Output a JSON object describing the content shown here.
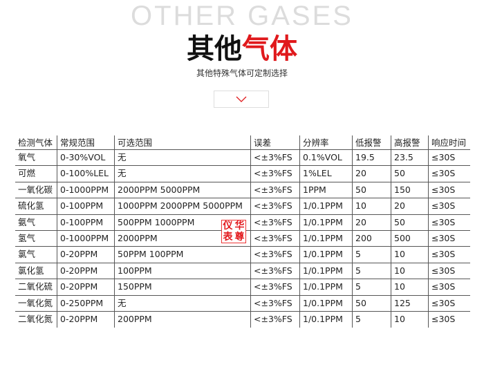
{
  "header": {
    "background_text": "OTHER GASES",
    "title_black": "其他",
    "title_red": "气体",
    "subtitle": "其他特殊气体可定制选择",
    "accent_color": "#e0191c",
    "expand_icon": "chevron-down-icon"
  },
  "table": {
    "columns": [
      "检测气体",
      "常规范围",
      "可选范围",
      "误差",
      "分辨率",
      "低报警",
      "高报警",
      "响应时间"
    ],
    "rows": [
      [
        "氧气",
        "0-30%VOL",
        "无",
        "<±3%FS",
        "0.1%VOL",
        "19.5",
        "23.5",
        "≤30S"
      ],
      [
        "可燃",
        "0-100%LEL",
        "无",
        "<±3%FS",
        "1%LEL",
        "20",
        "50",
        "≤30S"
      ],
      [
        "一氧化碳",
        "0-1000PPM",
        "2000PPM 5000PPM",
        "<±3%FS",
        "1PPM",
        "50",
        "150",
        "≤30S"
      ],
      [
        "硫化氢",
        "0-100PPM",
        "1000PPM 2000PPM 5000PPM",
        "<±3%FS",
        "1/0.1PPM",
        "10",
        "20",
        "≤30S"
      ],
      [
        "氨气",
        "0-100PPM",
        "500PPM 1000PPM",
        "<±3%FS",
        "1/0.1PPM",
        "20",
        "50",
        "≤30S"
      ],
      [
        "氢气",
        "0-1000PPM",
        "2000PPM",
        "<±3%FS",
        "1/0.1PPM",
        "200",
        "500",
        "≤30S"
      ],
      [
        "氯气",
        "0-20PPM",
        "50PPM 100PPM",
        "<±3%FS",
        "1/0.1PPM",
        "5",
        "10",
        "≤30S"
      ],
      [
        "氯化氢",
        "0-20PPM",
        "100PPM",
        "<±3%FS",
        "1/0.1PPM",
        "5",
        "10",
        "≤30S"
      ],
      [
        "二氧化硫",
        "0-20PPM",
        "150PPM",
        "<±3%FS",
        "1/0.1PPM",
        "5",
        "10",
        "≤30S"
      ],
      [
        "一氧化氮",
        "0-250PPM",
        "无",
        "<±3%FS",
        "1/0.1PPM",
        "50",
        "125",
        "≤30S"
      ],
      [
        "二氧化氮",
        "0-20PPM",
        "200PPM",
        "<±3%FS",
        "1/0.1PPM",
        "5",
        "10",
        "≤30S"
      ]
    ]
  },
  "watermark_stamp": [
    "仪",
    "华",
    "表",
    "尊"
  ]
}
